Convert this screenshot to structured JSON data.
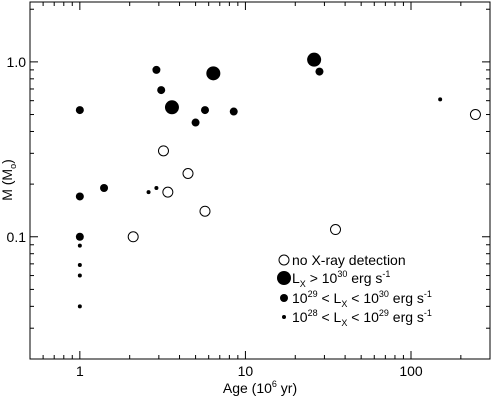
{
  "chart_data": {
    "type": "scatter",
    "xscale": "log",
    "yscale": "log",
    "xlim": [
      0.5,
      300
    ],
    "ylim": [
      0.02,
      2.2
    ],
    "xlabel": {
      "text": "Age (10",
      "sup": "6",
      "tail": " yr)"
    },
    "ylabel": {
      "text": "M (M",
      "sub": "o",
      "tail": ")"
    },
    "xticks": [
      {
        "v": 1,
        "label": "1"
      },
      {
        "v": 10,
        "label": "10"
      },
      {
        "v": 100,
        "label": "100"
      }
    ],
    "yticks": [
      {
        "v": 0.1,
        "label": "0.1"
      },
      {
        "v": 1.0,
        "label": "1.0"
      }
    ],
    "series": [
      {
        "key": "none",
        "marker": "open",
        "legend": {
          "text": "no X-ray detection"
        },
        "points": [
          {
            "x": 2.1,
            "y": 0.1
          },
          {
            "x": 3.2,
            "y": 0.31
          },
          {
            "x": 3.4,
            "y": 0.18
          },
          {
            "x": 4.5,
            "y": 0.23
          },
          {
            "x": 5.7,
            "y": 0.14
          },
          {
            "x": 35,
            "y": 0.11
          },
          {
            "x": 245,
            "y": 0.5
          }
        ]
      },
      {
        "key": "big",
        "marker": "filled-large",
        "legend": {
          "pre": "L",
          "sub": "X",
          "mid": " > 10",
          "sup": "30",
          "post": " erg s",
          "sup2": "-1"
        },
        "points": [
          {
            "x": 3.6,
            "y": 0.55
          },
          {
            "x": 6.4,
            "y": 0.86
          },
          {
            "x": 26,
            "y": 1.03
          }
        ]
      },
      {
        "key": "med",
        "marker": "filled-medium",
        "legend": {
          "pre": "10",
          "sup": "29",
          "mid": " < L",
          "sub": "X",
          "mid2": " < 10",
          "sup2": "30",
          "post": " erg s",
          "sup3": "-1"
        },
        "points": [
          {
            "x": 1.0,
            "y": 0.53
          },
          {
            "x": 1.0,
            "y": 0.17
          },
          {
            "x": 1.0,
            "y": 0.1
          },
          {
            "x": 1.4,
            "y": 0.19
          },
          {
            "x": 2.9,
            "y": 0.9
          },
          {
            "x": 3.1,
            "y": 0.69
          },
          {
            "x": 5.0,
            "y": 0.45
          },
          {
            "x": 5.7,
            "y": 0.53
          },
          {
            "x": 8.5,
            "y": 0.52
          },
          {
            "x": 28,
            "y": 0.88
          }
        ]
      },
      {
        "key": "small",
        "marker": "filled-small",
        "legend": {
          "pre": "10",
          "sup": "28",
          "mid": " < L",
          "sub": "X",
          "mid2": " < 10",
          "sup2": "29",
          "post": " erg s",
          "sup3": "-1"
        },
        "points": [
          {
            "x": 1.0,
            "y": 0.089
          },
          {
            "x": 1.0,
            "y": 0.069
          },
          {
            "x": 1.0,
            "y": 0.06
          },
          {
            "x": 1.0,
            "y": 0.04
          },
          {
            "x": 2.6,
            "y": 0.18
          },
          {
            "x": 2.9,
            "y": 0.19
          },
          {
            "x": 150,
            "y": 0.61
          }
        ]
      }
    ]
  }
}
